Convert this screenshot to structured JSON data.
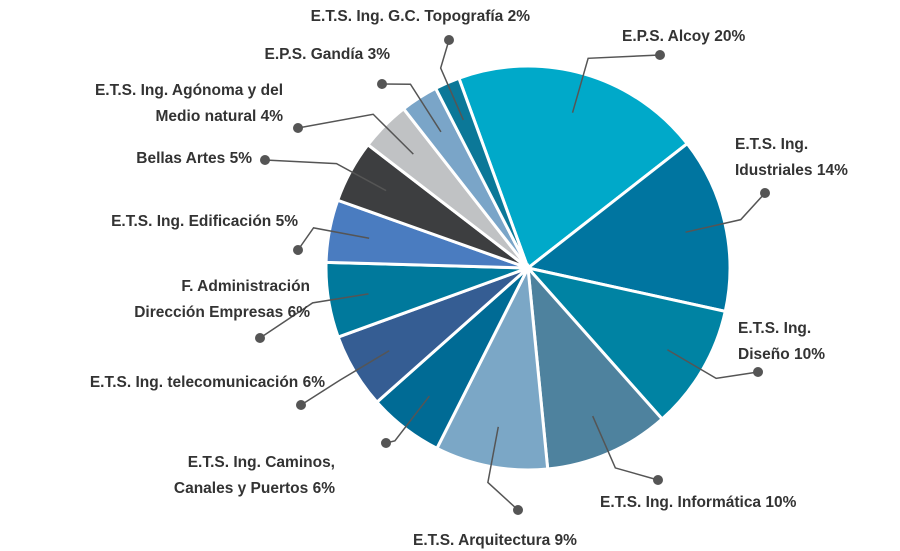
{
  "chart_data": {
    "type": "pie",
    "categories": [
      "E.P.S. Alcoy",
      "E.T.S. Ing. Idustriales",
      "E.T.S. Ing. Diseño",
      "E.T.S. Ing. Informática",
      "E.T.S. Arquitectura",
      "E.T.S. Ing. Caminos, Canales y Puertos",
      "E.T.S. Ing. telecomunicación",
      "F. Administración Dirección Empresas",
      "E.T.S. Ing. Edificación",
      "Bellas Artes",
      "E.T.S. Ing. Agónoma y del Medio natural",
      "E.P.S. Gandía",
      "E.T.S. Ing. G.C. Topografía"
    ],
    "values": [
      20,
      14,
      10,
      10,
      9,
      6,
      6,
      6,
      5,
      5,
      4,
      3,
      2
    ],
    "value_labels": [
      "20%",
      "14%",
      "10%",
      "10%",
      "9%",
      "6%",
      "6%",
      "6%",
      "5%",
      "5%",
      "4%",
      "3%",
      "2%"
    ],
    "colors": [
      "#00a9c9",
      "#0075a0",
      "#0083a3",
      "#4e829e",
      "#7ba7c6",
      "#006b95",
      "#355d93",
      "#00799c",
      "#4a7cc0",
      "#3d3e40",
      "#c0c2c4",
      "#7aa5c8",
      "#0b7898"
    ]
  }
}
